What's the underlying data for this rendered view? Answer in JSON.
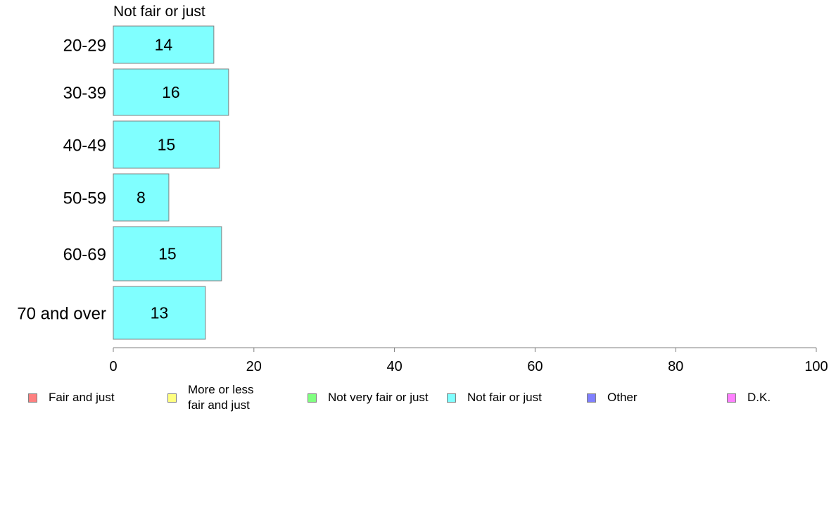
{
  "chart_data": {
    "type": "bar",
    "orientation": "horizontal",
    "title": "Not fair or just",
    "categories": [
      "20-29",
      "30-39",
      "40-49",
      "50-59",
      "60-69",
      "70 and over"
    ],
    "series": [
      {
        "name": "Not fair or just",
        "values": [
          14.3,
          16.4,
          15.1,
          7.9,
          15.4,
          13.1
        ],
        "labels": [
          "14",
          "16",
          "15",
          "8",
          "15",
          "13"
        ]
      }
    ],
    "xlim": [
      0,
      100
    ],
    "xticks": [
      "0",
      "20",
      "40",
      "60",
      "80",
      "100"
    ],
    "grid": false,
    "legend_position": "bottom",
    "bar_color": "#80ffff",
    "bar_stroke": "#808080",
    "legend": [
      {
        "label": "Fair and just",
        "color": "#ff8080"
      },
      {
        "label": "More or less\nfair and just",
        "color": "#ffff80"
      },
      {
        "label": "Not very fair or just",
        "color": "#80ff80"
      },
      {
        "label": "Not fair or just",
        "color": "#80ffff"
      },
      {
        "label": "Other",
        "color": "#8080ff"
      },
      {
        "label": "D.K.",
        "color": "#ff80ff"
      }
    ]
  }
}
